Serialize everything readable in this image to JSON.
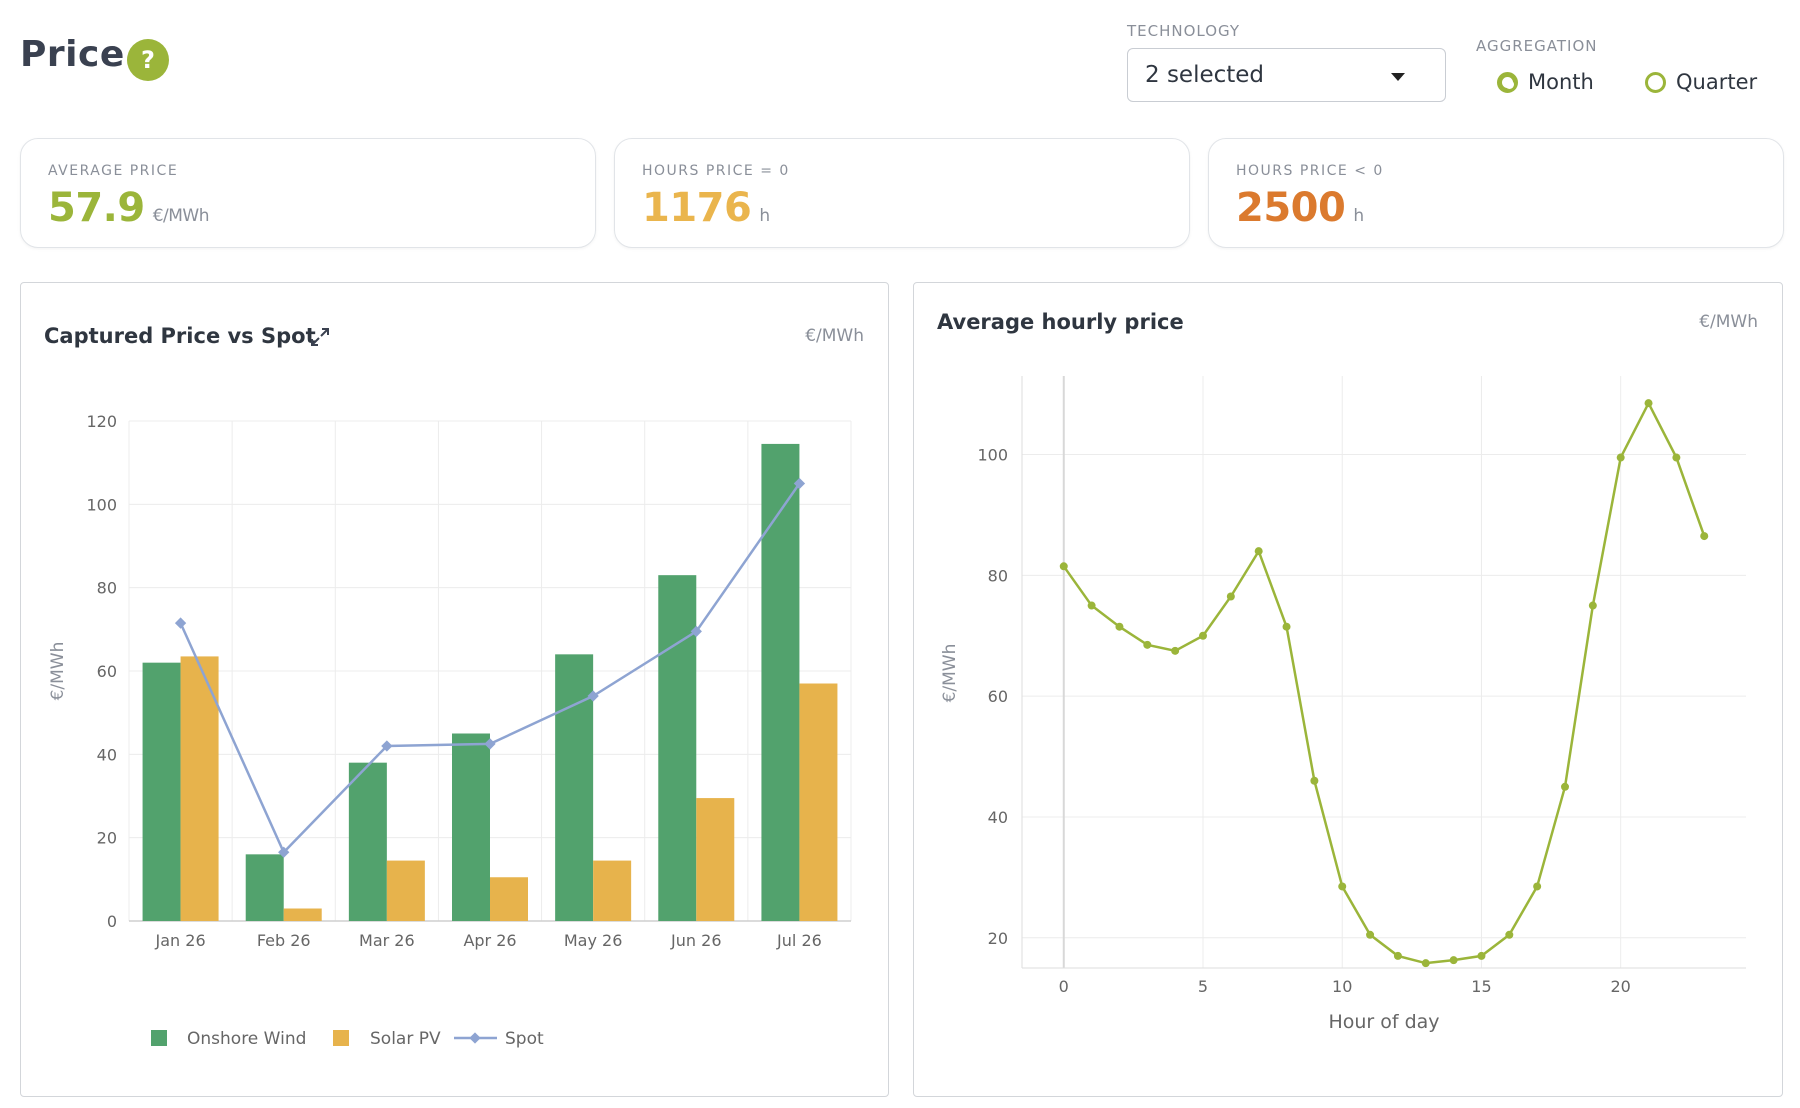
{
  "header": {
    "title": "Price",
    "help_icon": "?"
  },
  "controls": {
    "technology": {
      "label": "TECHNOLOGY",
      "value": "2 selected"
    },
    "aggregation": {
      "label": "AGGREGATION",
      "options": [
        {
          "label": "Month",
          "selected": true
        },
        {
          "label": "Quarter",
          "selected": false
        }
      ]
    }
  },
  "kpis": [
    {
      "label": "AVERAGE PRICE",
      "value": "57.9",
      "unit": "€/MWh",
      "color": "#9bb53a"
    },
    {
      "label": "HOURS PRICE = 0",
      "value": "1176",
      "unit": "h",
      "color": "#eab54d"
    },
    {
      "label": "HOURS PRICE < 0",
      "value": "2500",
      "unit": "h",
      "color": "#db7a2e"
    }
  ],
  "colors": {
    "wind": "#52a26d",
    "solar": "#e7b34c",
    "spot": "#8ea4d2",
    "hourly": "#9bb53a",
    "grid": "#ececec",
    "axis": "#666666"
  },
  "chart_data": [
    {
      "type": "bar",
      "title": "Captured Price vs Spot",
      "unit_label": "€/MWh",
      "ylabel": "€/MWh",
      "ylim": [
        0,
        120
      ],
      "yticks": [
        0,
        20,
        40,
        60,
        80,
        100,
        120
      ],
      "categories": [
        "Jan 26",
        "Feb 26",
        "Mar 26",
        "Apr 26",
        "May 26",
        "Jun 26",
        "Jul 26"
      ],
      "series": [
        {
          "name": "Onshore Wind",
          "type": "bar",
          "values": [
            62,
            16,
            38,
            45,
            64,
            83,
            114.5
          ]
        },
        {
          "name": "Solar PV",
          "type": "bar",
          "values": [
            63.5,
            3,
            14.5,
            10.5,
            14.5,
            29.5,
            57
          ]
        },
        {
          "name": "Spot",
          "type": "line",
          "values": [
            71.5,
            16.5,
            42,
            42.5,
            54,
            69.5,
            105
          ]
        }
      ],
      "grid": true,
      "legend": "bottom-left"
    },
    {
      "type": "line",
      "title": "Average hourly price",
      "unit_label": "€/MWh",
      "ylabel": "€/MWh",
      "xlabel": "Hour of day",
      "xlim": [
        -1.5,
        24.5
      ],
      "ylim": [
        15,
        113
      ],
      "xticks": [
        0,
        5,
        10,
        15,
        20
      ],
      "yticks": [
        20,
        40,
        60,
        80,
        100
      ],
      "x": [
        0,
        1,
        2,
        3,
        4,
        5,
        6,
        7,
        8,
        9,
        10,
        11,
        12,
        13,
        14,
        15,
        16,
        17,
        18,
        19,
        20,
        21,
        22,
        23
      ],
      "series": [
        {
          "values": [
            81.5,
            75,
            71.5,
            68.5,
            67.5,
            70,
            76.5,
            84,
            71.5,
            46,
            28.5,
            20.5,
            17,
            15.8,
            16.3,
            17,
            20.5,
            28.5,
            45,
            75,
            99.5,
            108.5,
            99.5,
            86.5
          ]
        }
      ],
      "grid": true
    }
  ]
}
